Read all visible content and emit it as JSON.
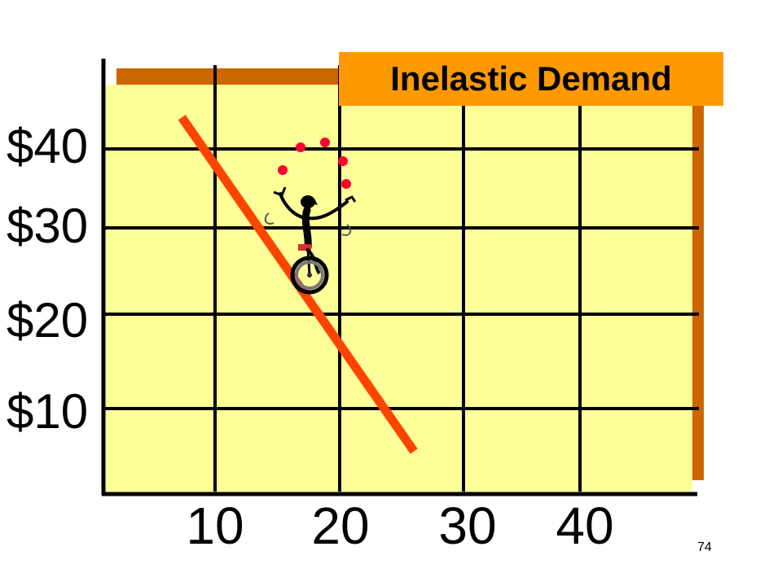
{
  "slide": {
    "page_number": "74"
  },
  "chart_data": {
    "type": "line",
    "title": "Inelastic Demand",
    "xlabel": "",
    "ylabel": "",
    "x_ticks": [
      10,
      20,
      30,
      40
    ],
    "y_ticks": [
      10,
      20,
      30,
      40
    ],
    "x_tick_labels": [
      "10",
      "20",
      "30",
      "40"
    ],
    "y_tick_labels": [
      "$10",
      "$20",
      "$30",
      "$40"
    ],
    "grid": true,
    "series": [
      {
        "name": "",
        "x": [
          7,
          26
        ],
        "y": [
          44,
          5
        ]
      }
    ],
    "colors": {
      "plot_background": "#ffff99",
      "shadow": "#cc6600",
      "demand_line": "#ff4400",
      "title_box": "#ff9900",
      "grid": "#000000",
      "juggler_balls": "#ff0033"
    },
    "annotation_icon": "unicycle-juggler-icon"
  }
}
